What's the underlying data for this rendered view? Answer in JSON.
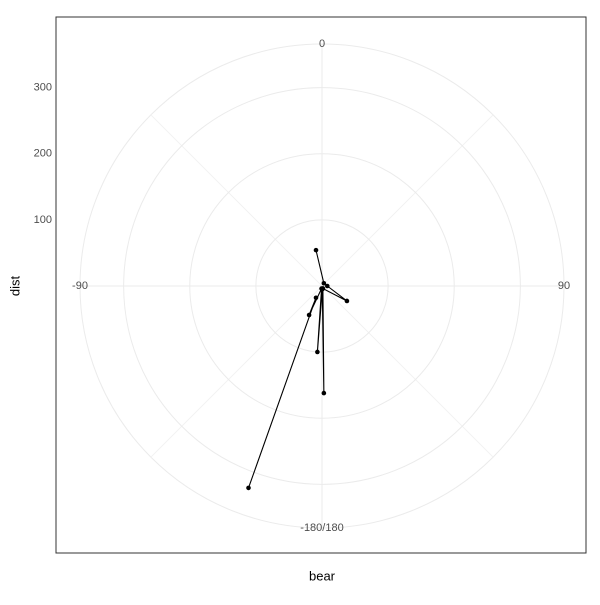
{
  "chart_data": {
    "type": "polar-path",
    "x_label": "bear",
    "y_label": "dist",
    "xlim": [
      -180,
      180
    ],
    "xticks": [
      -90,
      0,
      90,
      {
        "value": 180,
        "label": "-180/180"
      }
    ],
    "ylim": [
      0,
      366
    ],
    "yticks": [
      100,
      200,
      300
    ],
    "grid": true,
    "color": "#000000",
    "x": [
      -9.5,
      34,
      90,
      121,
      160,
      179,
      175,
      -176,
      -170,
      -156,
      -153,
      -160
    ],
    "values": [
      55,
      5,
      8,
      44,
      4,
      162,
      5,
      100,
      4,
      48,
      20,
      325
    ]
  }
}
